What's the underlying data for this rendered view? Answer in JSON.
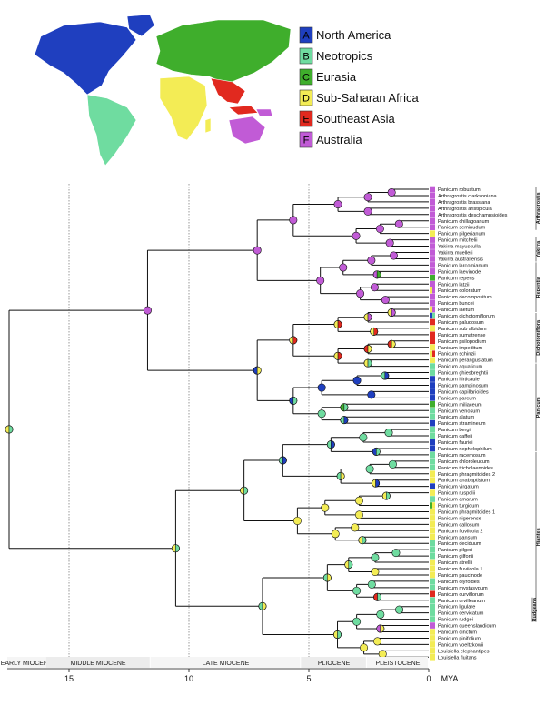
{
  "colors": {
    "A": "#1f3fbf",
    "B": "#6fdca0",
    "C": "#3fae2c",
    "D": "#f3ec55",
    "E": "#e1291f",
    "F": "#c15bd6"
  },
  "legend": [
    {
      "code": "A",
      "label": "North America"
    },
    {
      "code": "B",
      "label": "Neotropics"
    },
    {
      "code": "C",
      "label": "Eurasia"
    },
    {
      "code": "D",
      "label": "Sub-Saharan Africa"
    },
    {
      "code": "E",
      "label": "Southeast Asia"
    },
    {
      "code": "F",
      "label": "Australia"
    }
  ],
  "axis": {
    "unit": "MYA",
    "ticks": [
      "15",
      "10",
      "5",
      "0"
    ],
    "epochs": [
      "EARLY MIOCENE",
      "MIDDLE MIOCENE",
      "LATE MIOCENE",
      "PLIOCENE",
      "PLEISTOCENE"
    ]
  },
  "taxa": [
    {
      "name": "Panicum robustum",
      "region": "F"
    },
    {
      "name": "Arthragrostis clarksoniana",
      "region": "F"
    },
    {
      "name": "Arthragrostis brassiana",
      "region": "F"
    },
    {
      "name": "Arthragrostis aristipicula",
      "region": "F"
    },
    {
      "name": "Arthragrostis deschampsioides",
      "region": "F"
    },
    {
      "name": "Panicum chillagoanum",
      "region": "F"
    },
    {
      "name": "Panicum seminudum",
      "region": "F"
    },
    {
      "name": "Panicum pilgerianum",
      "region": "D"
    },
    {
      "name": "Panicum mitchelii",
      "region": "F"
    },
    {
      "name": "Yakirra mayusculla",
      "region": "F"
    },
    {
      "name": "Yakirra muelleri",
      "region": "F"
    },
    {
      "name": "Yakirra australiensis",
      "region": "F"
    },
    {
      "name": "Panicum larcomianum",
      "region": "F"
    },
    {
      "name": "Panicum laevinode",
      "region": "F"
    },
    {
      "name": "Panicum repens",
      "region": "C"
    },
    {
      "name": "Panicum latzii",
      "region": "F"
    },
    {
      "name": "Panicum coloratum",
      "region": "DF"
    },
    {
      "name": "Panicum decompositum",
      "region": "F"
    },
    {
      "name": "Panicum buncei",
      "region": "F"
    },
    {
      "name": "Panicum laetum",
      "region": "DF"
    },
    {
      "name": "Panicum dichotomiflorum",
      "region": "AB"
    },
    {
      "name": "Panicum paludosum",
      "region": "E"
    },
    {
      "name": "Panicum sub albidum",
      "region": "D"
    },
    {
      "name": "Panicum sumatrense",
      "region": "E"
    },
    {
      "name": "Panicum psilopodium",
      "region": "E"
    },
    {
      "name": "Panicum impeditum",
      "region": "D"
    },
    {
      "name": "Panicum schinzii",
      "region": "DE"
    },
    {
      "name": "Panicum perangustatum",
      "region": "D"
    },
    {
      "name": "Panicum aquaticum",
      "region": "B"
    },
    {
      "name": "Panicum ghiesbreghtii",
      "region": "B"
    },
    {
      "name": "Panicum hirticaule",
      "region": "A"
    },
    {
      "name": "Panicum pampinosum",
      "region": "A"
    },
    {
      "name": "Panicum capillarioides",
      "region": "A"
    },
    {
      "name": "Panicum parcum",
      "region": "A"
    },
    {
      "name": "Panicum miliaceum",
      "region": "C"
    },
    {
      "name": "Panicum venosum",
      "region": "B"
    },
    {
      "name": "Panicum alatum",
      "region": "B"
    },
    {
      "name": "Panicum stramineum",
      "region": "A"
    },
    {
      "name": "Panicum bergii",
      "region": "B"
    },
    {
      "name": "Panicum caffeii",
      "region": "B"
    },
    {
      "name": "Panicum fauriei",
      "region": "A"
    },
    {
      "name": "Panicum nephelophilum",
      "region": "A"
    },
    {
      "name": "Panicum racemosum",
      "region": "B"
    },
    {
      "name": "Panicum chloroleucum",
      "region": "B"
    },
    {
      "name": "Panicum tricholaenoides",
      "region": "B"
    },
    {
      "name": "Panicum phragmitoides 2",
      "region": "D"
    },
    {
      "name": "Panicum anabaptistum",
      "region": "D"
    },
    {
      "name": "Panicum virgatum",
      "region": "A"
    },
    {
      "name": "Panicum ruspolii",
      "region": "D"
    },
    {
      "name": "Panicum amarum",
      "region": "B"
    },
    {
      "name": "Panicum turgidum",
      "region": "CD"
    },
    {
      "name": "Panicum phragmitoides 1",
      "region": "D"
    },
    {
      "name": "Panicum nigerense",
      "region": "D"
    },
    {
      "name": "Panicum callosum",
      "region": "D"
    },
    {
      "name": "Panicum fluviicola 2",
      "region": "D"
    },
    {
      "name": "Panicum pansum",
      "region": "D"
    },
    {
      "name": "Panicum deciduum",
      "region": "B"
    },
    {
      "name": "Panicum pilgeri",
      "region": "B"
    },
    {
      "name": "Panicum gilfonii",
      "region": "B"
    },
    {
      "name": "Panicum atrellii",
      "region": "D"
    },
    {
      "name": "Panicum fluviicola 1",
      "region": "D"
    },
    {
      "name": "Panicum paucinode",
      "region": "D"
    },
    {
      "name": "Panicum olyroides",
      "region": "B"
    },
    {
      "name": "Panicum mystasypum",
      "region": "B"
    },
    {
      "name": "Panicum curviflorum",
      "region": "E"
    },
    {
      "name": "Panicum urvilleanum",
      "region": "B"
    },
    {
      "name": "Panicum ligulare",
      "region": "B"
    },
    {
      "name": "Panicum cervicatum",
      "region": "B"
    },
    {
      "name": "Panicum rudgei",
      "region": "B"
    },
    {
      "name": "Panicum queenslandicum",
      "region": "F"
    },
    {
      "name": "Panicum dinctum",
      "region": "D"
    },
    {
      "name": "Panicum pinifolium",
      "region": "D"
    },
    {
      "name": "Panicum voeltzkowii",
      "region": "D"
    },
    {
      "name": "Louisiella elephantipes",
      "region": "D"
    },
    {
      "name": "Louisiella fluitans",
      "region": "D"
    }
  ],
  "clades": [
    {
      "label": "Arthragrostis",
      "from": 0,
      "to": 6
    },
    {
      "label": "Yakirra",
      "from": 8,
      "to": 11
    },
    {
      "label": "Repentia",
      "from": 12,
      "to": 19
    },
    {
      "label": "Dichotomiflora",
      "from": 20,
      "to": 27
    },
    {
      "label": "Panicum",
      "from": 28,
      "to": 41
    },
    {
      "label": "Hiantes",
      "from": 42,
      "to": 68
    },
    {
      "label": "Rudgeana",
      "from": 65,
      "to": 68
    }
  ]
}
